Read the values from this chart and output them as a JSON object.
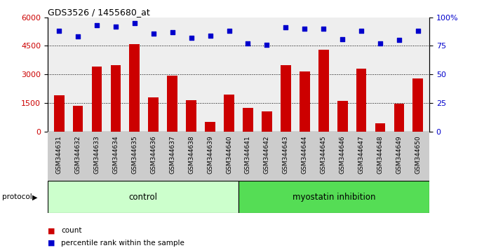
{
  "title": "GDS3526 / 1455680_at",
  "samples": [
    "GSM344631",
    "GSM344632",
    "GSM344633",
    "GSM344634",
    "GSM344635",
    "GSM344636",
    "GSM344637",
    "GSM344638",
    "GSM344639",
    "GSM344640",
    "GSM344641",
    "GSM344642",
    "GSM344643",
    "GSM344644",
    "GSM344645",
    "GSM344646",
    "GSM344647",
    "GSM344648",
    "GSM344649",
    "GSM344650"
  ],
  "bar_values": [
    1900,
    1350,
    3400,
    3500,
    4600,
    1800,
    2950,
    1650,
    500,
    1950,
    1250,
    1050,
    3500,
    3150,
    4300,
    1600,
    3300,
    430,
    1450,
    2800
  ],
  "percentile_values": [
    88,
    83,
    93,
    92,
    95,
    86,
    87,
    82,
    84,
    88,
    77,
    76,
    91,
    90,
    90,
    81,
    88,
    77,
    80,
    88
  ],
  "control_count": 10,
  "myostatin_count": 10,
  "bar_color": "#cc0000",
  "dot_color": "#0000cc",
  "ylim_left": [
    0,
    6000
  ],
  "ylim_right": [
    0,
    100
  ],
  "yticks_left": [
    0,
    1500,
    3000,
    4500,
    6000
  ],
  "yticks_right": [
    0,
    25,
    50,
    75,
    100
  ],
  "ytick_right_labels": [
    "0",
    "25",
    "50",
    "75",
    "100%"
  ],
  "grid_values": [
    1500,
    3000,
    4500
  ],
  "control_color": "#ccffcc",
  "myostatin_color": "#55dd55",
  "ticklabel_bg": "#cccccc",
  "plot_bg": "#eeeeee"
}
